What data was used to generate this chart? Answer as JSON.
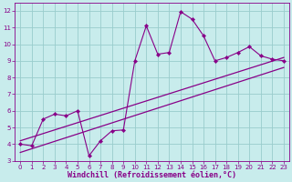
{
  "xlabel": "Windchill (Refroidissement éolien,°C)",
  "background_color": "#c8ecec",
  "line_color": "#880088",
  "grid_color": "#99cccc",
  "xlim": [
    -0.5,
    23.5
  ],
  "ylim": [
    3,
    12.5
  ],
  "xticks": [
    0,
    1,
    2,
    3,
    4,
    5,
    6,
    7,
    8,
    9,
    10,
    11,
    12,
    13,
    14,
    15,
    16,
    17,
    18,
    19,
    20,
    21,
    22,
    23
  ],
  "yticks": [
    3,
    4,
    5,
    6,
    7,
    8,
    9,
    10,
    11,
    12
  ],
  "curve_x": [
    0,
    1,
    2,
    3,
    4,
    5,
    6,
    7,
    8,
    9,
    10,
    11,
    12,
    13,
    14,
    15,
    16,
    17,
    18,
    19,
    20,
    21,
    22,
    23
  ],
  "curve_y": [
    4.0,
    3.9,
    5.5,
    5.8,
    5.7,
    6.0,
    3.3,
    4.2,
    4.8,
    4.85,
    9.0,
    11.1,
    9.4,
    9.5,
    11.95,
    11.5,
    10.5,
    9.0,
    9.2,
    9.5,
    9.85,
    9.3,
    9.1,
    9.0
  ],
  "line1_x": [
    0,
    23
  ],
  "line1_y": [
    4.2,
    9.2
  ],
  "line2_x": [
    0,
    23
  ],
  "line2_y": [
    3.5,
    8.6
  ],
  "font_color": "#880088",
  "tick_fontsize": 5.0,
  "xlabel_fontsize": 6.0
}
